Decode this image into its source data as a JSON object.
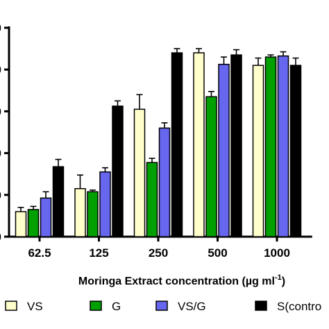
{
  "chart_data": {
    "type": "bar",
    "title": "",
    "xlabel": "Moringa Extract concentration (µg ml",
    "xlabel_superscript": "-1",
    "xlabel_suffix": ")",
    "ylabel": "",
    "categories": [
      "62.5",
      "125",
      "250",
      "500",
      "1000"
    ],
    "ylim": [
      0,
      100
    ],
    "y_ticks": [
      0,
      20,
      40,
      60,
      80,
      100
    ],
    "y_tick_labels_visible": [
      "0",
      "0",
      "0",
      "0",
      "0",
      "0"
    ],
    "grid": false,
    "legend_position": "bottom",
    "series": [
      {
        "name": "VS",
        "color": "#ffffcc",
        "values": [
          12,
          23,
          61,
          88,
          82
        ],
        "errors": [
          2.0,
          6.5,
          7.0,
          2.0,
          3.5
        ]
      },
      {
        "name": "G",
        "color": "#00a000",
        "values": [
          13,
          21.5,
          35.5,
          67,
          86
        ],
        "errors": [
          1.5,
          0.8,
          2.0,
          2.5,
          1.0
        ]
      },
      {
        "name": "VS/G",
        "color": "#6666ee",
        "values": [
          18.5,
          31,
          52,
          82.5,
          86.5
        ],
        "errors": [
          3.0,
          2.0,
          2.5,
          3.5,
          2.0
        ]
      },
      {
        "name": "S(control)",
        "color": "#000000",
        "values": [
          33.5,
          62.5,
          88,
          87,
          82
        ],
        "errors": [
          3.5,
          2.5,
          2.0,
          2.5,
          3.5
        ]
      }
    ],
    "legend_labels_visible": [
      "VS",
      "G",
      "VS/G",
      "S(contro"
    ]
  }
}
